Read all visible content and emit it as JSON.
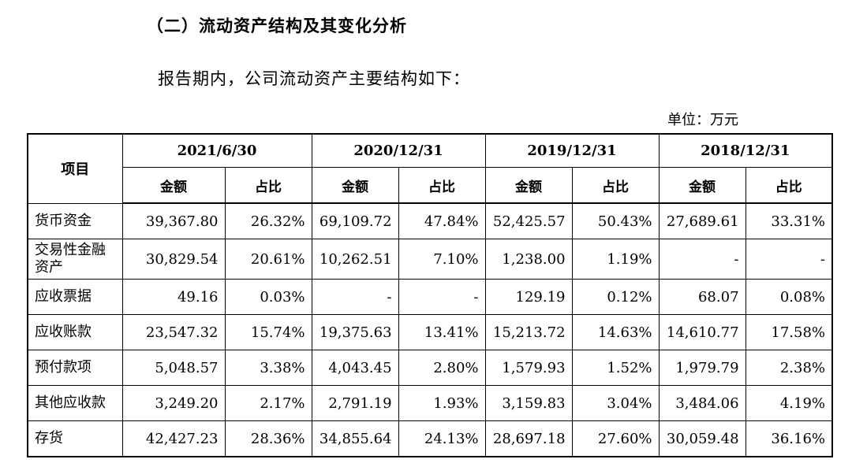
{
  "section_title": "（二）流动资产结构及其变化分析",
  "intro_text": "报告期内，公司流动资产主要结构如下：",
  "unit_label": "单位：万元",
  "table": {
    "item_header": "项目",
    "periods": [
      "2021/6/30",
      "2020/12/31",
      "2019/12/31",
      "2018/12/31"
    ],
    "sub_headers": [
      "金额",
      "占比"
    ],
    "rows": [
      {
        "name": "货币资金",
        "cells": [
          "39,367.80",
          "26.32%",
          "69,109.72",
          "47.84%",
          "52,425.57",
          "50.43%",
          "27,689.61",
          "33.31%"
        ]
      },
      {
        "name": "交易性金融资产",
        "cells": [
          "30,829.54",
          "20.61%",
          "10,262.51",
          "7.10%",
          "1,238.00",
          "1.19%",
          "-",
          "-"
        ]
      },
      {
        "name": "应收票据",
        "cells": [
          "49.16",
          "0.03%",
          "-",
          "-",
          "129.19",
          "0.12%",
          "68.07",
          "0.08%"
        ]
      },
      {
        "name": "应收账款",
        "cells": [
          "23,547.32",
          "15.74%",
          "19,375.63",
          "13.41%",
          "15,213.72",
          "14.63%",
          "14,610.77",
          "17.58%"
        ]
      },
      {
        "name": "预付款项",
        "cells": [
          "5,048.57",
          "3.38%",
          "4,043.45",
          "2.80%",
          "1,579.93",
          "1.52%",
          "1,979.79",
          "2.38%"
        ]
      },
      {
        "name": "其他应收款",
        "cells": [
          "3,249.20",
          "2.17%",
          "2,791.19",
          "1.93%",
          "3,159.83",
          "3.04%",
          "3,484.06",
          "4.19%"
        ]
      },
      {
        "name": "存货",
        "cells": [
          "42,427.23",
          "28.36%",
          "34,855.64",
          "24.13%",
          "28,697.18",
          "27.60%",
          "30,059.48",
          "36.16%"
        ]
      }
    ]
  }
}
